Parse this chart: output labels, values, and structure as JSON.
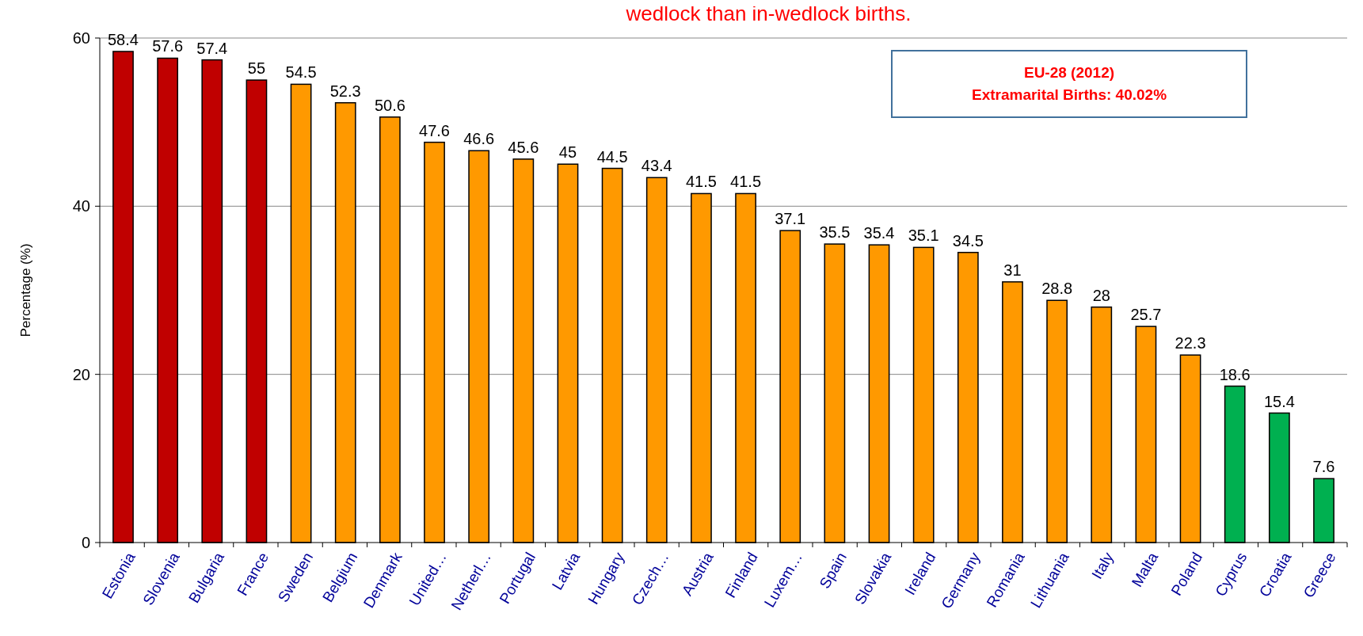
{
  "chart_data": {
    "type": "bar",
    "title": "wedlock than in-wedlock births.",
    "ylabel": "Percentage (%)",
    "categories": [
      "Estonia",
      "Slovenia",
      "Bulgaria",
      "France",
      "Sweden",
      "Belgium",
      "Denmark",
      "United…",
      "Netherl…",
      "Portugal",
      "Latvia",
      "Hungary",
      "Czech…",
      "Austria",
      "Finland",
      "Luxem…",
      "Spain",
      "Slovakia",
      "Ireland",
      "Germany",
      "Romania",
      "Lithuania",
      "Italy",
      "Malta",
      "Poland",
      "Cyprus",
      "Croatia",
      "Greece"
    ],
    "values": [
      58.4,
      57.6,
      57.4,
      55,
      54.5,
      52.3,
      50.6,
      47.6,
      46.6,
      45.6,
      45,
      44.5,
      43.4,
      41.5,
      41.5,
      37.1,
      35.5,
      35.4,
      35.1,
      34.5,
      31,
      28.8,
      28,
      25.7,
      22.3,
      18.6,
      15.4,
      7.6
    ],
    "colors": [
      "#c00000",
      "#c00000",
      "#c00000",
      "#c00000",
      "#ff9900",
      "#ff9900",
      "#ff9900",
      "#ff9900",
      "#ff9900",
      "#ff9900",
      "#ff9900",
      "#ff9900",
      "#ff9900",
      "#ff9900",
      "#ff9900",
      "#ff9900",
      "#ff9900",
      "#ff9900",
      "#ff9900",
      "#ff9900",
      "#ff9900",
      "#ff9900",
      "#ff9900",
      "#ff9900",
      "#ff9900",
      "#00b050",
      "#00b050",
      "#00b050"
    ],
    "ylim": [
      0,
      60
    ],
    "yticks": [
      0,
      20,
      40,
      60
    ],
    "grid": "y",
    "data_labels": true,
    "annotations": [
      "EU-28 (2012)",
      "Extramarital Births: 40.02%"
    ]
  }
}
